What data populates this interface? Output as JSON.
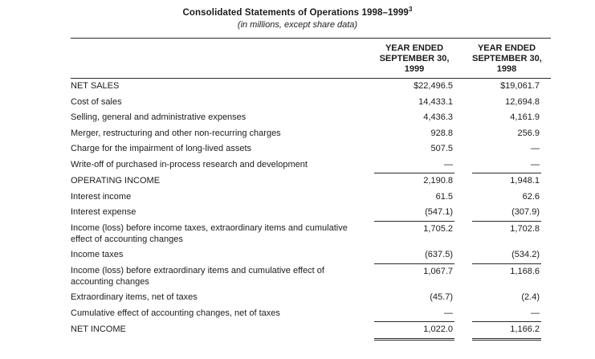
{
  "page": {
    "title": "Consolidated Statements of Operations 1998–1999",
    "title_superscript": "3",
    "subtitle": "(in millions, except share data)"
  },
  "table": {
    "column_headers": [
      {
        "lines": [
          "YEAR ENDED",
          "SEPTEMBER 30,",
          "1999"
        ]
      },
      {
        "lines": [
          "YEAR ENDED",
          "SEPTEMBER 30,",
          "1998"
        ]
      }
    ],
    "rows": [
      {
        "label": "NET SALES",
        "y1999": "$22,496.5",
        "y1998": "$19,061.7"
      },
      {
        "label": "Cost of sales",
        "y1999": "14,433.1",
        "y1998": "12,694.8"
      },
      {
        "label": "Selling, general and administrative expenses",
        "y1999": "4,436.3",
        "y1998": "4,161.9"
      },
      {
        "label": "Merger, restructuring and other non-recurring charges",
        "y1999": "928.8",
        "y1998": "256.9"
      },
      {
        "label": "Charge for the impairment of long-lived assets",
        "y1999": "507.5",
        "y1998": "—"
      },
      {
        "label": "Write-off of purchased in-process research and development",
        "y1999": "—",
        "y1998": "—",
        "rule_below": "single"
      },
      {
        "label": "OPERATING INCOME",
        "y1999": "2,190.8",
        "y1998": "1,948.1"
      },
      {
        "label": "Interest income",
        "y1999": "61.5",
        "y1998": "62.6"
      },
      {
        "label": "Interest expense",
        "y1999": "(547.1)",
        "y1998": "(307.9)",
        "rule_below": "single"
      },
      {
        "label": "Income (loss) before income taxes, extraordinary items and cumulative effect of accounting changes",
        "y1999": "1,705.2",
        "y1998": "1,702.8"
      },
      {
        "label": "Income taxes",
        "y1999": "(637.5)",
        "y1998": "(534.2)",
        "rule_below": "single"
      },
      {
        "label": "Income (loss) before extraordinary items and cumulative effect of accounting changes",
        "y1999": "1,067.7",
        "y1998": "1,168.6"
      },
      {
        "label": "Extraordinary items, net of taxes",
        "y1999": "(45.7)",
        "y1998": "(2.4)"
      },
      {
        "label": "Cumulative effect of accounting changes, net of taxes",
        "y1999": "—",
        "y1998": "—",
        "rule_below": "single"
      },
      {
        "label": "NET INCOME",
        "y1999": "1,022.0",
        "y1998": "1,166.2",
        "rule_below": "double"
      }
    ]
  },
  "colors": {
    "background": "#ffffff",
    "text": "#1c1c1c",
    "rule": "#2a2a2a"
  }
}
